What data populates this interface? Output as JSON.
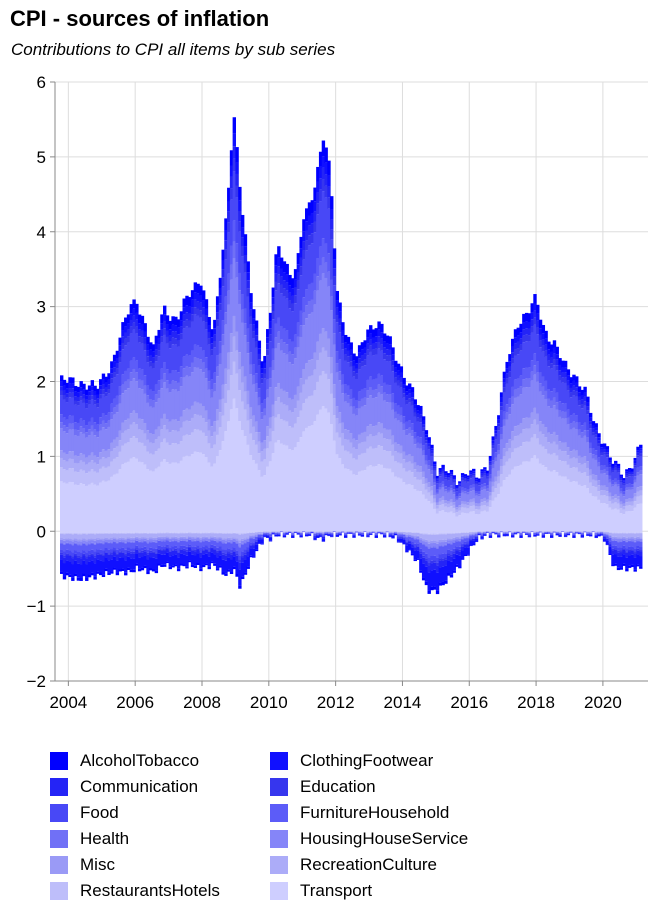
{
  "header": {
    "title": "CPI - sources of inflation",
    "subtitle": "Contributions to CPI all items by sub series"
  },
  "chart_data": {
    "type": "bar",
    "title": "CPI - sources of inflation",
    "subtitle": "Contributions to CPI all items by sub series",
    "stacked": true,
    "xlim": [
      2003.6,
      2021.35
    ],
    "ylim": [
      -2,
      6
    ],
    "x_ticks": [
      "2004",
      "2006",
      "2008",
      "2010",
      "2012",
      "2014",
      "2016",
      "2018",
      "2020"
    ],
    "y_ticks": [
      "6",
      "5",
      "4",
      "3",
      "2",
      "1",
      "0",
      "−1",
      "−2"
    ],
    "grid": true,
    "legend_position": "bottom",
    "anchor_x": [
      2003.8,
      2004.3,
      2004.8,
      2005.3,
      2005.8,
      2006.0,
      2006.5,
      2006.8,
      2007.2,
      2007.6,
      2007.9,
      2008.3,
      2008.7,
      2008.9,
      2009.1,
      2009.4,
      2009.8,
      2010.0,
      2010.2,
      2010.4,
      2010.6,
      2010.8,
      2011.0,
      2011.2,
      2011.4,
      2011.6,
      2011.8,
      2012.0,
      2012.3,
      2012.6,
      2012.9,
      2013.2,
      2013.5,
      2013.8,
      2014.0,
      2014.4,
      2014.7,
      2015.0,
      2015.3,
      2015.6,
      2015.9,
      2016.2,
      2016.5,
      2016.8,
      2017.1,
      2017.4,
      2017.7,
      2017.95,
      2018.2,
      2018.5,
      2018.8,
      2019.1,
      2019.4,
      2019.7,
      2020.0,
      2020.3,
      2020.6,
      2020.9,
      2021.1
    ],
    "anchor_total": [
      2.0,
      2.0,
      1.9,
      2.3,
      3.0,
      3.1,
      2.4,
      3.0,
      2.8,
      3.2,
      3.4,
      2.6,
      4.3,
      5.6,
      4.5,
      3.3,
      2.2,
      2.9,
      3.8,
      3.7,
      3.4,
      3.5,
      4.2,
      4.4,
      4.8,
      5.3,
      4.7,
      3.2,
      2.6,
      2.3,
      2.7,
      2.8,
      2.6,
      2.3,
      2.1,
      1.7,
      1.4,
      0.8,
      0.8,
      0.7,
      0.8,
      0.7,
      0.9,
      1.5,
      2.3,
      2.8,
      2.9,
      3.1,
      2.7,
      2.5,
      2.2,
      2.1,
      1.9,
      1.4,
      1.2,
      0.9,
      0.7,
      1.0,
      1.2
    ],
    "anchor_neg": [
      -0.6,
      -0.65,
      -0.6,
      -0.55,
      -0.55,
      -0.5,
      -0.55,
      -0.45,
      -0.5,
      -0.45,
      -0.5,
      -0.45,
      -0.6,
      -0.5,
      -0.75,
      -0.4,
      -0.1,
      -0.1,
      -0.05,
      -0.05,
      -0.05,
      -0.05,
      -0.05,
      -0.05,
      -0.1,
      -0.1,
      -0.05,
      -0.05,
      -0.05,
      -0.05,
      -0.05,
      -0.05,
      -0.05,
      -0.1,
      -0.2,
      -0.4,
      -0.8,
      -0.8,
      -0.65,
      -0.5,
      -0.3,
      -0.1,
      -0.05,
      -0.05,
      -0.05,
      -0.05,
      -0.05,
      -0.05,
      -0.05,
      -0.05,
      -0.05,
      -0.05,
      -0.05,
      -0.05,
      -0.1,
      -0.5,
      -0.5,
      -0.5,
      -0.5
    ],
    "series": [
      {
        "name": "AlcoholTobacco",
        "color": "#0000ff",
        "pos_share": 0.04,
        "neg_share": 0.06
      },
      {
        "name": "ClothingFootwear",
        "color": "#1010ff",
        "pos_share": 0.03,
        "neg_share": 0.28
      },
      {
        "name": "Communication",
        "color": "#2424f6",
        "pos_share": 0.03,
        "neg_share": 0.12
      },
      {
        "name": "Education",
        "color": "#3636ee",
        "pos_share": 0.03,
        "neg_share": 0.04
      },
      {
        "name": "Food",
        "color": "#4848f6",
        "pos_share": 0.12,
        "neg_share": 0.08
      },
      {
        "name": "FurnitureHousehold",
        "color": "#5c5cf8",
        "pos_share": 0.05,
        "neg_share": 0.14
      },
      {
        "name": "Health",
        "color": "#7070f6",
        "pos_share": 0.04,
        "neg_share": 0.02
      },
      {
        "name": "HousingHouseService",
        "color": "#8585f8",
        "pos_share": 0.14,
        "neg_share": 0.06
      },
      {
        "name": "Misc",
        "color": "#9a9af6",
        "pos_share": 0.05,
        "neg_share": 0.04
      },
      {
        "name": "RecreationCulture",
        "color": "#acacf8",
        "pos_share": 0.06,
        "neg_share": 0.1
      },
      {
        "name": "RestaurantsHotels",
        "color": "#bebefa",
        "pos_share": 0.09,
        "neg_share": 0.02
      },
      {
        "name": "Transport",
        "color": "#ceceff",
        "pos_share": 0.32,
        "neg_share": 0.04
      }
    ]
  }
}
